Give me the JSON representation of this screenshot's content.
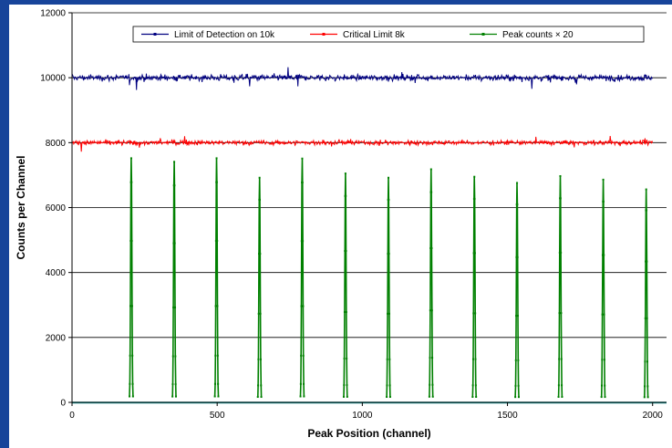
{
  "chart_data": {
    "type": "line",
    "title": "",
    "xlabel": "Peak Position (channel)",
    "ylabel": "Counts per Channel",
    "xlim": [
      0,
      2048
    ],
    "ylim": [
      0,
      12000
    ],
    "x_ticks": [
      0,
      500,
      1000,
      1500,
      2000
    ],
    "y_ticks": [
      0,
      2000,
      4000,
      6000,
      8000,
      10000,
      12000
    ],
    "grid": "horizontal",
    "legend_position": "top",
    "series": [
      {
        "name": "Limit of Detection on 10k",
        "color": "#000080",
        "level": 10000,
        "noise": 130,
        "x_range": [
          0,
          2000
        ]
      },
      {
        "name": "Critical Limit 8k",
        "color": "#ff0000",
        "level": 8000,
        "noise": 100,
        "x_range": [
          0,
          2000
        ]
      },
      {
        "name": "Peak counts × 20",
        "color": "#008000",
        "baseline": 20,
        "x_range": [
          0,
          2048
        ],
        "peaks": [
          {
            "x": 204,
            "height": 7520
          },
          {
            "x": 352,
            "height": 7410
          },
          {
            "x": 498,
            "height": 7520
          },
          {
            "x": 646,
            "height": 6920
          },
          {
            "x": 793,
            "height": 7510
          },
          {
            "x": 942,
            "height": 7050
          },
          {
            "x": 1090,
            "height": 6920
          },
          {
            "x": 1237,
            "height": 7180
          },
          {
            "x": 1386,
            "height": 6950
          },
          {
            "x": 1533,
            "height": 6760
          },
          {
            "x": 1682,
            "height": 6970
          },
          {
            "x": 1830,
            "height": 6860
          },
          {
            "x": 1978,
            "height": 6560
          }
        ]
      }
    ],
    "baseline_color": "#20a0a0"
  }
}
